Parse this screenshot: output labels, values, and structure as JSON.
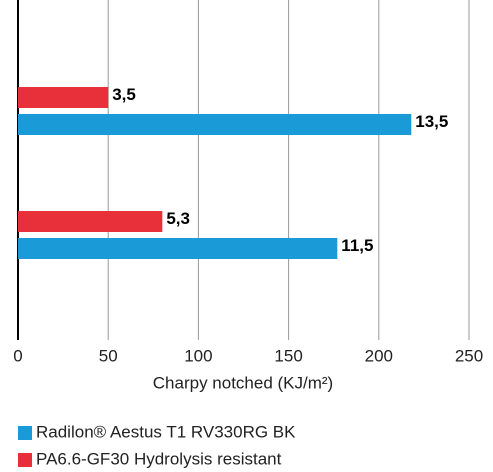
{
  "chart_data": {
    "type": "hbar",
    "xlabel": "Charpy notched (KJ/m²)",
    "categories": [
      null,
      null
    ],
    "series": [
      {
        "name": "PA6.6-GF30 Hydrolysis resistant",
        "color": "#e8303a",
        "values": [
          50,
          80
        ],
        "annotations": [
          "3,5",
          "5,3"
        ]
      },
      {
        "name": "Radilon® Aestus T1 RV330RG BK",
        "color": "#1a9ad6",
        "values": [
          218,
          177
        ],
        "annotations": [
          "13,5",
          "11,5"
        ]
      }
    ],
    "legend_order": [
      1,
      0
    ],
    "xlim": [
      0,
      250
    ],
    "xticks": [
      0,
      50,
      100,
      150,
      200,
      250
    ],
    "grid": true
  }
}
